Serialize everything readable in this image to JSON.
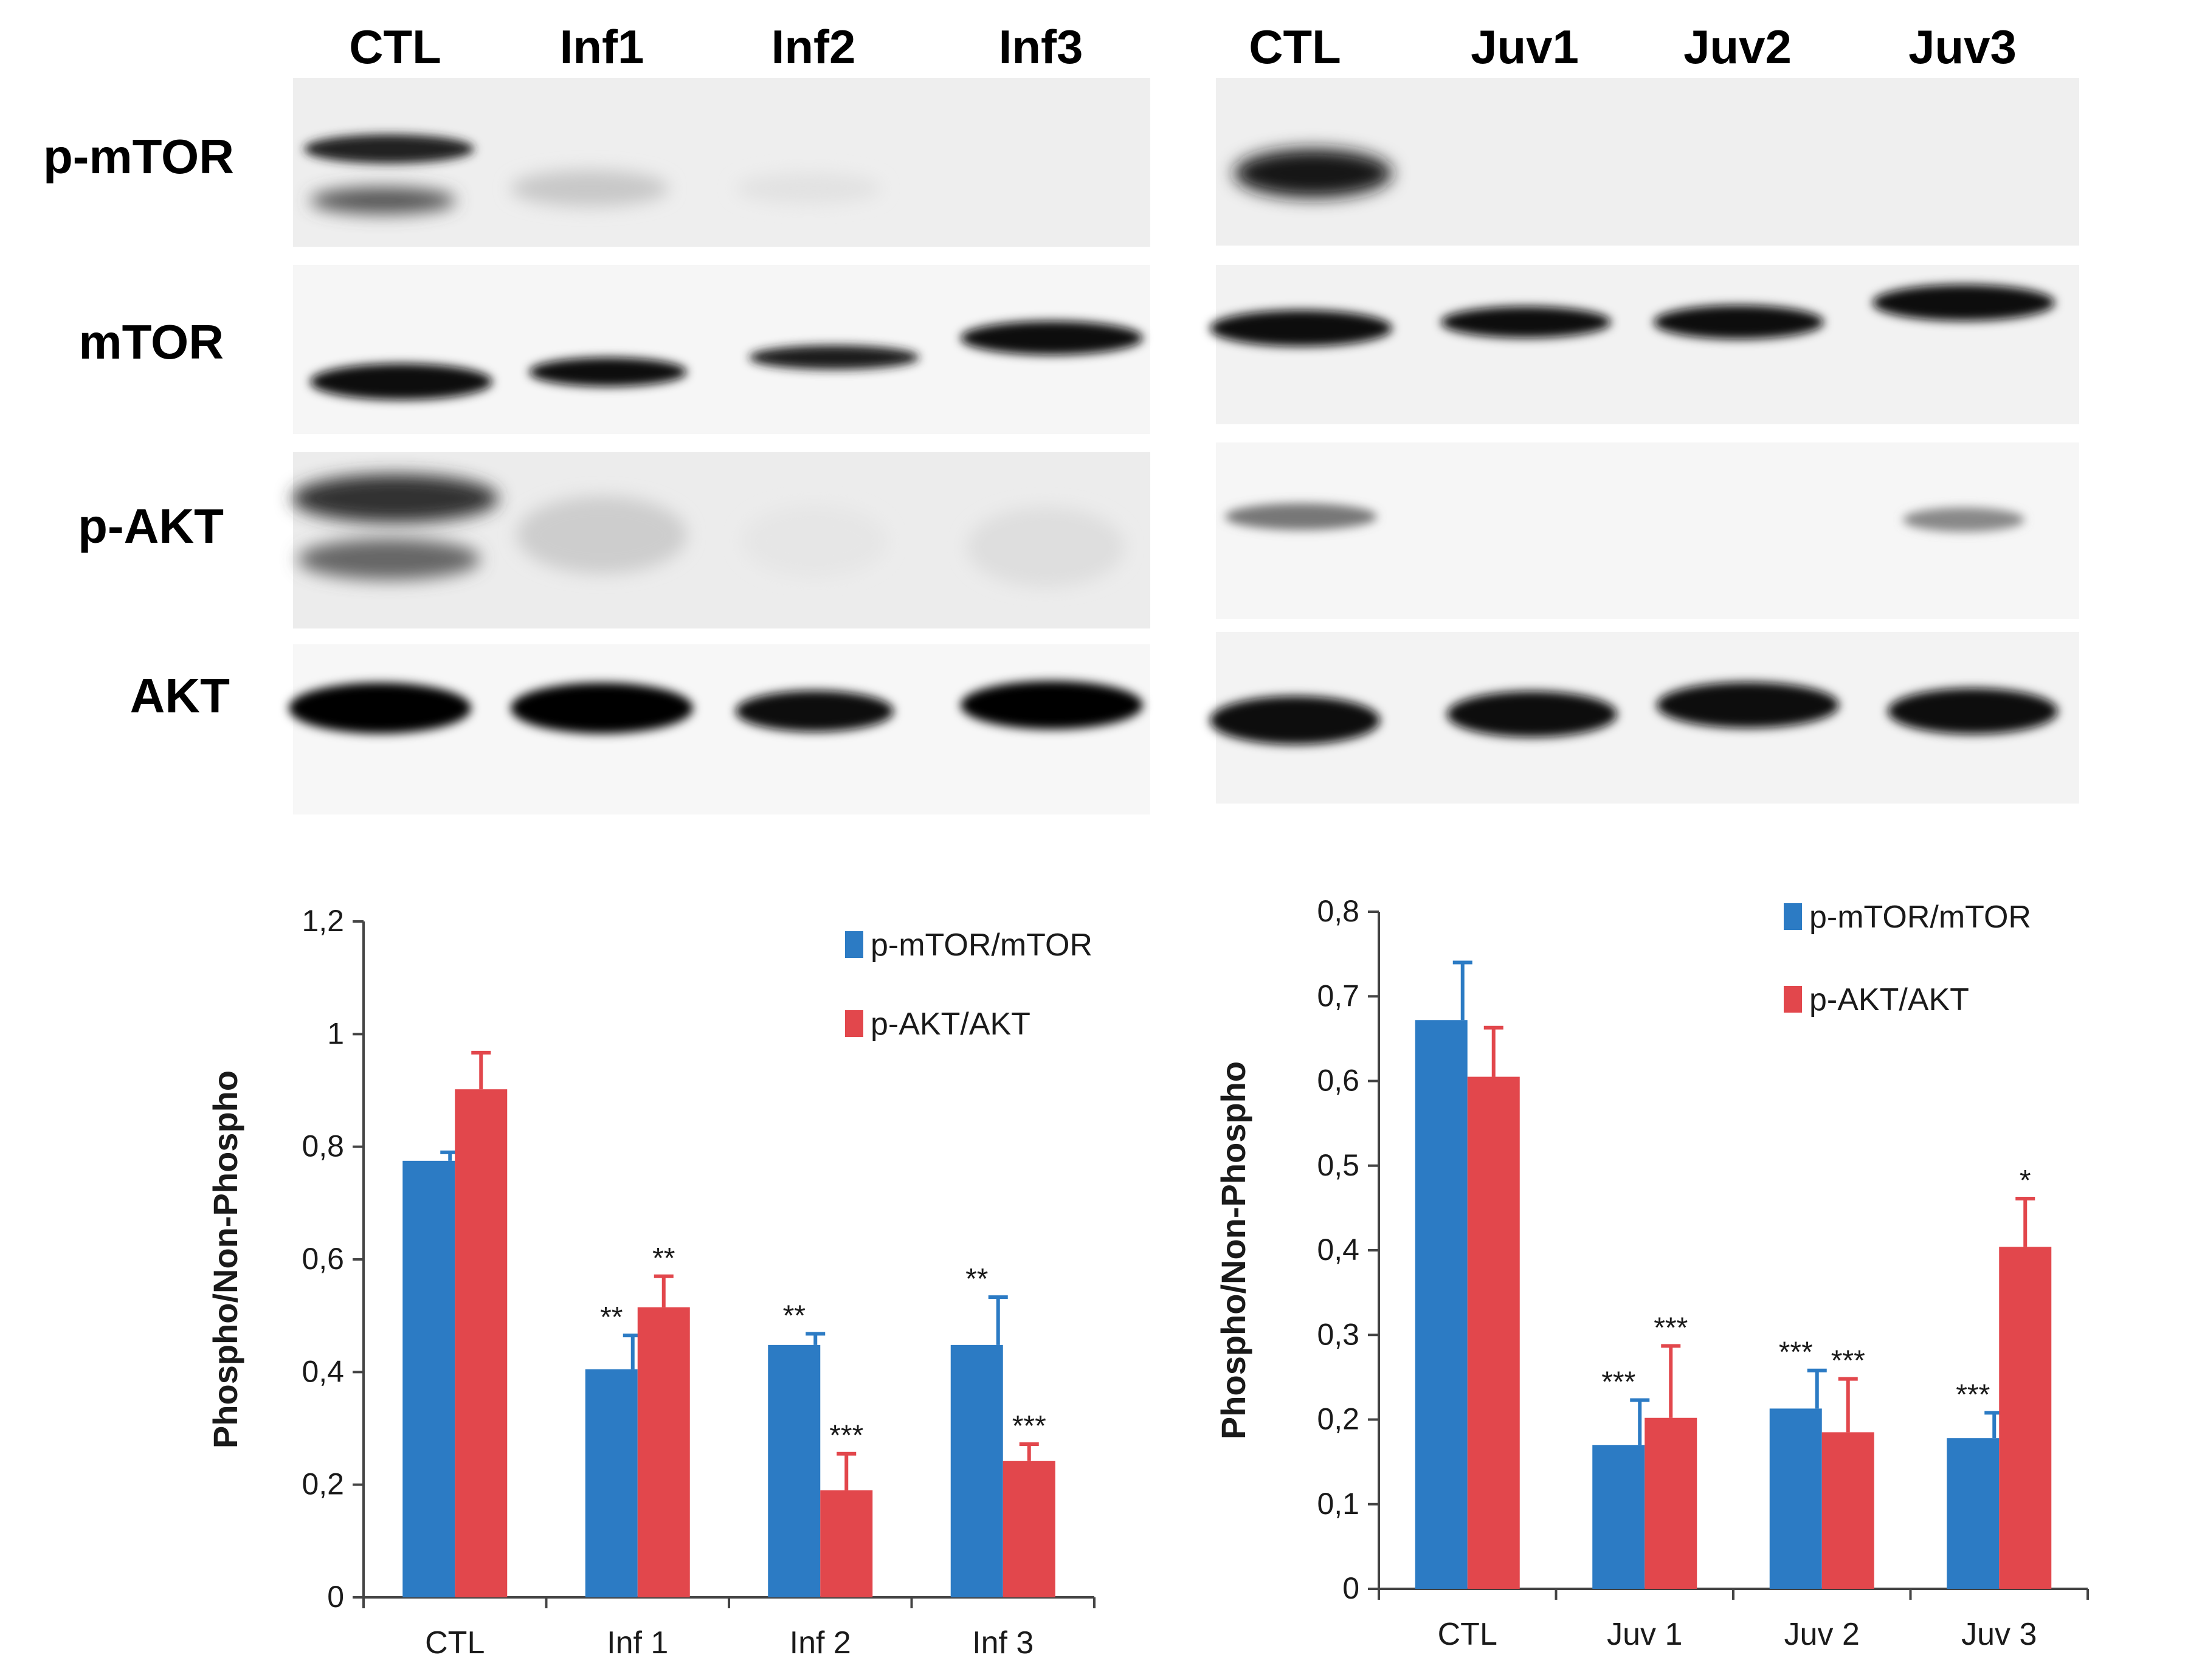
{
  "blots": [
    {
      "lanes": [
        "CTL",
        "Inf1",
        "Inf2",
        "Inf3"
      ],
      "rows": [
        "p-mTOR",
        "mTOR",
        "p-AKT",
        "AKT"
      ]
    },
    {
      "lanes": [
        "CTL",
        "Juv1",
        "Juv2",
        "Juv3"
      ],
      "rows": []
    }
  ],
  "chart_data": [
    {
      "type": "bar",
      "categories": [
        "CTL",
        "Inf 1",
        "Inf 2",
        "Inf 3"
      ],
      "ylabel": "Phospho/Non-Phospho",
      "ylim": [
        0,
        1.2
      ],
      "ytick_step": 0.2,
      "ytick_labels": [
        "0",
        "0,2",
        "0,4",
        "0,6",
        "0,8",
        "1",
        "1,2"
      ],
      "legend_position": "top-right",
      "series": [
        {
          "name": "p-mTOR/mTOR",
          "color": "#2C7BC4",
          "values": [
            0.775,
            0.405,
            0.448,
            0.448
          ],
          "errors": [
            0.015,
            0.06,
            0.02,
            0.085
          ],
          "significance": [
            "",
            "**",
            "**",
            "**"
          ]
        },
        {
          "name": "p-AKT/AKT",
          "color": "#E2474C",
          "values": [
            0.902,
            0.515,
            0.19,
            0.242
          ],
          "errors": [
            0.065,
            0.055,
            0.065,
            0.03
          ],
          "significance": [
            "",
            "**",
            "***",
            "***"
          ]
        }
      ]
    },
    {
      "type": "bar",
      "categories": [
        "CTL",
        "Juv 1",
        "Juv 2",
        "Juv 3"
      ],
      "ylabel": "Phospho/Non-Phospho",
      "ylim": [
        0,
        0.8
      ],
      "ytick_step": 0.1,
      "ytick_labels": [
        "0",
        "0,1",
        "0,2",
        "0,3",
        "0,4",
        "0,5",
        "0,6",
        "0,7",
        "0,8"
      ],
      "legend_position": "top-right",
      "series": [
        {
          "name": "p-mTOR/mTOR",
          "color": "#2C7BC4",
          "values": [
            0.672,
            0.17,
            0.213,
            0.178
          ],
          "errors": [
            0.068,
            0.053,
            0.045,
            0.03
          ],
          "significance": [
            "",
            "***",
            "***",
            "***"
          ]
        },
        {
          "name": "p-AKT/AKT",
          "color": "#E2474C",
          "values": [
            0.605,
            0.202,
            0.185,
            0.404
          ],
          "errors": [
            0.058,
            0.085,
            0.063,
            0.057
          ],
          "significance": [
            "",
            "***",
            "***",
            "*"
          ]
        }
      ]
    }
  ]
}
